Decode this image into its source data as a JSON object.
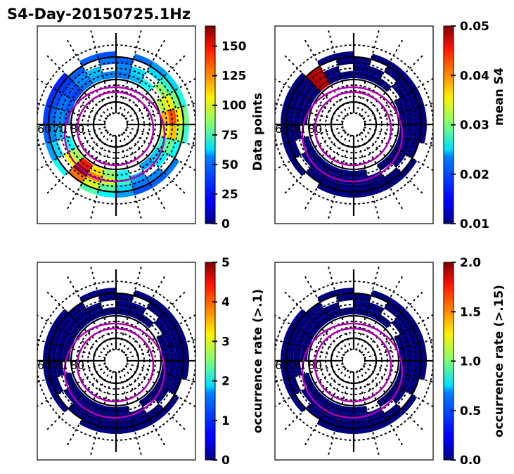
{
  "chart_data": [
    {
      "type": "heatmap",
      "projection": "polar (magnetic latitude / local time)",
      "title": "S4-Day-20150725.1Hz",
      "radial_tick_labels": [
        "60",
        "70",
        "80"
      ],
      "colorbar": {
        "label": "Data points",
        "range": [
          0,
          167
        ],
        "ticks": [
          0,
          25,
          50,
          75,
          100,
          125,
          150
        ],
        "tick_labels": [
          "0",
          "25",
          "50",
          "75",
          "100",
          "125",
          "150"
        ],
        "colormap": "jet"
      },
      "oval_overlay_color": "#b000b0",
      "ring_data": {
        "description": "binned ring of coverage between ~62 and ~75 deg latitude; values mostly 10-60, peaks up to ~160 in southwest sector",
        "sector_values": [
          30,
          45,
          60,
          80,
          100,
          130,
          110,
          70,
          50,
          40,
          35,
          60,
          90,
          120,
          165,
          95,
          60,
          40,
          30,
          25,
          20,
          30,
          40,
          35
        ]
      }
    },
    {
      "type": "heatmap",
      "projection": "polar (magnetic latitude / local time)",
      "title": "",
      "radial_tick_labels": [
        "60",
        "70",
        "80"
      ],
      "colorbar": {
        "label": "mean S4",
        "range": [
          0.01,
          0.05
        ],
        "ticks": [
          0.01,
          0.02,
          0.03,
          0.04,
          0.05
        ],
        "tick_labels": [
          "0.01",
          "0.02",
          "0.03",
          "0.04",
          "0.05"
        ],
        "colormap": "jet"
      },
      "oval_overlay_color": "#b000b0",
      "ring_data": {
        "description": "nearly all bins at minimum (~0.01) with one small bin near 0.05 in north-west sector",
        "sector_values": [
          0.01,
          0.01,
          0.01,
          0.01,
          0.01,
          0.01,
          0.01,
          0.01,
          0.01,
          0.01,
          0.01,
          0.01,
          0.01,
          0.01,
          0.01,
          0.01,
          0.01,
          0.01,
          0.01,
          0.01,
          0.01,
          0.048,
          0.01,
          0.01
        ]
      }
    },
    {
      "type": "heatmap",
      "projection": "polar (magnetic latitude / local time)",
      "title": "",
      "radial_tick_labels": [
        "60",
        "70",
        "80"
      ],
      "colorbar": {
        "label": "occurrence rate (>.1)",
        "range": [
          0,
          5
        ],
        "ticks": [
          0,
          1,
          2,
          3,
          4,
          5
        ],
        "tick_labels": [
          "0",
          "1",
          "2",
          "3",
          "4",
          "5"
        ],
        "colormap": "jet"
      },
      "oval_overlay_color": "#b000b0",
      "ring_data": {
        "description": "all bins at 0",
        "sector_values": [
          0,
          0,
          0,
          0,
          0,
          0,
          0,
          0,
          0,
          0,
          0,
          0,
          0,
          0,
          0,
          0,
          0,
          0,
          0,
          0,
          0,
          0,
          0,
          0
        ]
      }
    },
    {
      "type": "heatmap",
      "projection": "polar (magnetic latitude / local time)",
      "title": "",
      "radial_tick_labels": [
        "60",
        "70",
        "80"
      ],
      "colorbar": {
        "label": "occurrence rate (>.15)",
        "range": [
          0.0,
          2.0
        ],
        "ticks": [
          0.0,
          0.5,
          1.0,
          1.5,
          2.0
        ],
        "tick_labels": [
          "0.0",
          "0.5",
          "1.0",
          "1.5",
          "2.0"
        ],
        "colormap": "jet"
      },
      "oval_overlay_color": "#b000b0",
      "ring_data": {
        "description": "all bins at 0.0",
        "sector_values": [
          0,
          0,
          0,
          0,
          0,
          0,
          0,
          0,
          0,
          0,
          0,
          0,
          0,
          0,
          0,
          0,
          0,
          0,
          0,
          0,
          0,
          0,
          0,
          0
        ]
      }
    }
  ],
  "figure": {
    "title": "S4-Day-20150725.1Hz"
  }
}
